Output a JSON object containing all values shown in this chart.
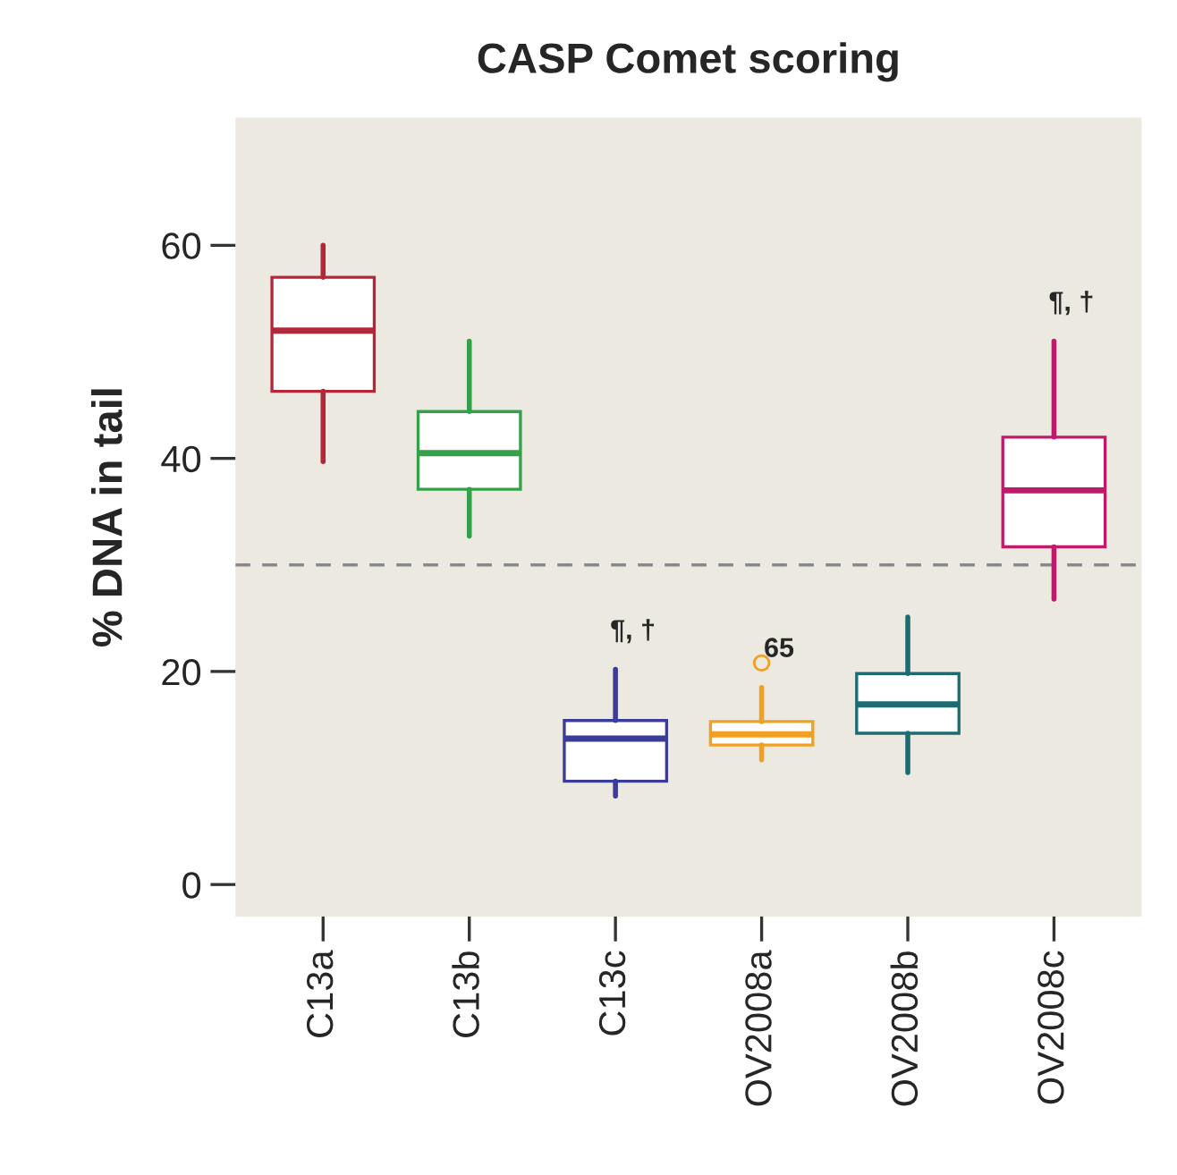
{
  "chart_data": {
    "type": "box",
    "title": "CASP Comet scoring",
    "ylabel": "% DNA in tail",
    "categories": [
      "C13a",
      "C13b",
      "C13c",
      "OV2008a",
      "OV2008b",
      "OV2008c"
    ],
    "colors": [
      "#b2283a",
      "#33a04a",
      "#3a3c98",
      "#f0a022",
      "#1e6b72",
      "#c01a6a"
    ],
    "boxes": [
      {
        "low": 39.7,
        "q1": 46.3,
        "median": 52,
        "q3": 57,
        "high": 60
      },
      {
        "low": 32.7,
        "q1": 37.1,
        "median": 40.5,
        "q3": 44.4,
        "high": 51
      },
      {
        "low": 8.3,
        "q1": 9.7,
        "median": 13.7,
        "q3": 15.4,
        "high": 20.2
      },
      {
        "low": 11.7,
        "q1": 13.1,
        "median": 14.1,
        "q3": 15.3,
        "high": 18.5,
        "outliers": [
          20.8
        ]
      },
      {
        "low": 10.5,
        "q1": 14.2,
        "median": 16.9,
        "q3": 19.8,
        "high": 25.1
      },
      {
        "low": 26.8,
        "q1": 31.7,
        "median": 37,
        "q3": 42,
        "high": 51
      }
    ],
    "ylim": [
      -3,
      72
    ],
    "yticks": [
      0,
      20,
      40,
      60
    ],
    "grid": false,
    "ref_lines": [
      {
        "axis": "y",
        "value": 30,
        "color": "#888888",
        "line_style": "dashed"
      }
    ],
    "annotations": [
      {
        "text": "¶, †",
        "x": "C13c",
        "y": 20.2
      },
      {
        "text": "65",
        "x": "OV2008a",
        "y": 18.5
      },
      {
        "text": "¶, †",
        "x": "OV2008c",
        "y": 51
      }
    ]
  }
}
